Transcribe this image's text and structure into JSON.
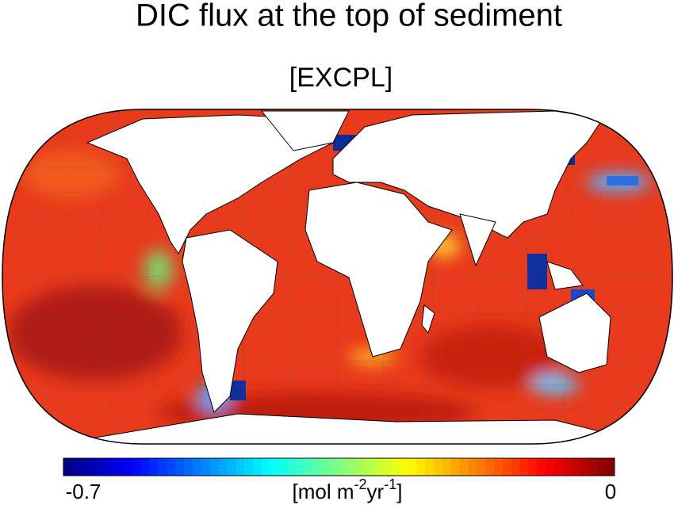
{
  "title": "DIC flux at the top of sediment",
  "subtitle": "[EXCPL]",
  "colorbar": {
    "colormap": "jet",
    "levels": 64,
    "clim": [
      -0.7,
      0
    ],
    "ticks": [
      -0.7,
      0
    ],
    "label_parts": [
      "[mol m",
      "-2",
      "yr",
      "-1",
      "]"
    ]
  }
}
